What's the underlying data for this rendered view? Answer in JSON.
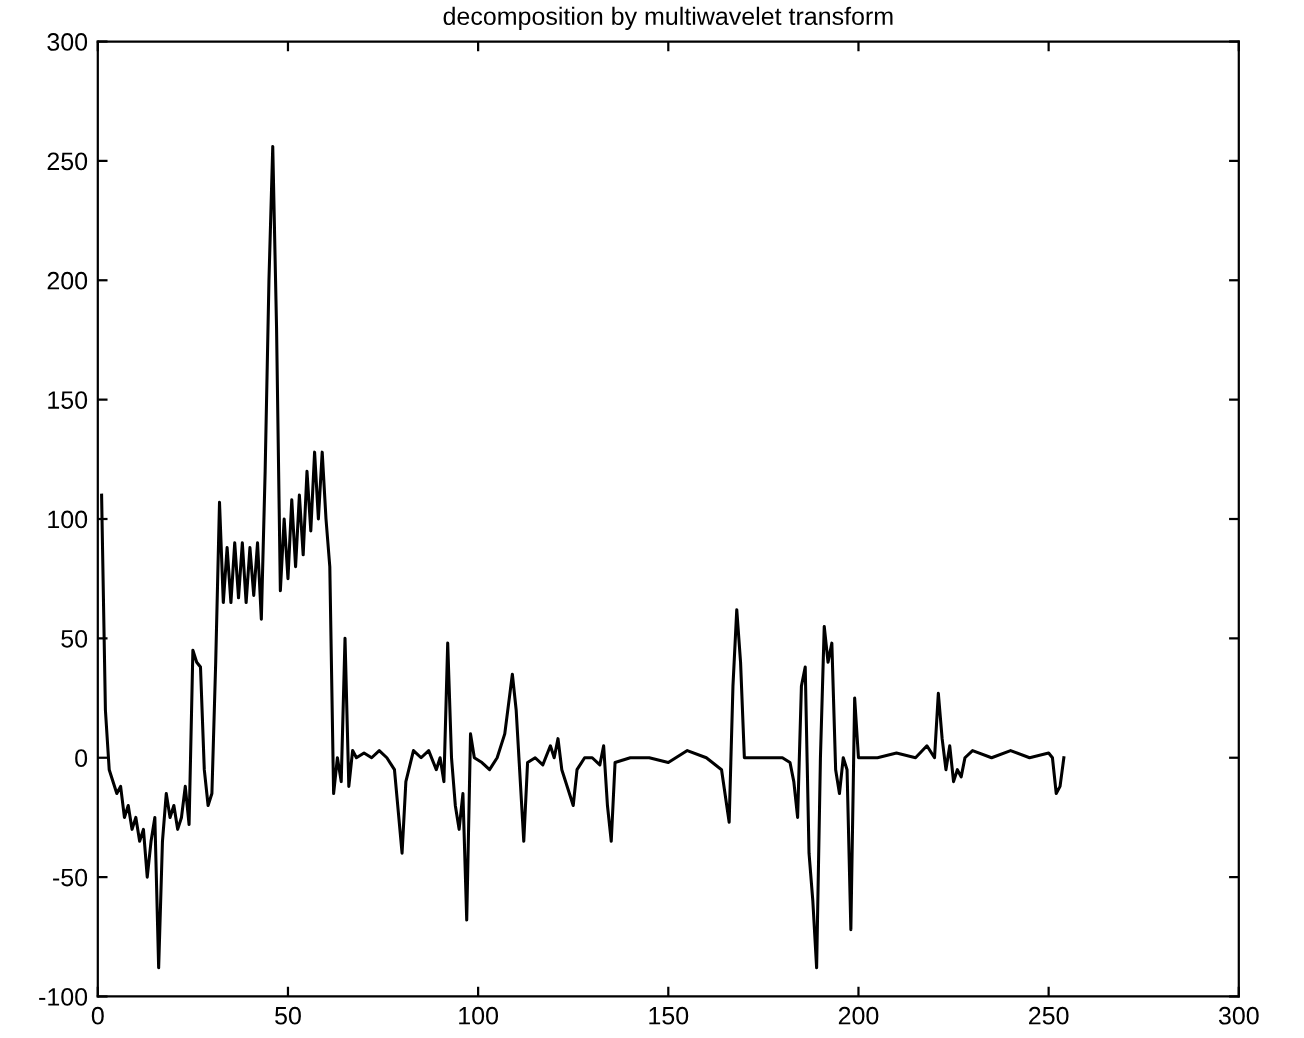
{
  "chart_data": {
    "type": "line",
    "title": "decomposition by multiwavelet transform",
    "color": "#000000",
    "x": [
      1,
      2,
      3,
      5,
      6,
      7,
      8,
      9,
      10,
      11,
      12,
      13,
      14,
      15,
      16,
      17,
      18,
      19,
      20,
      21,
      22,
      23,
      24,
      25,
      26,
      27,
      28,
      29,
      30,
      31,
      32,
      33,
      34,
      35,
      36,
      37,
      38,
      39,
      40,
      41,
      42,
      43,
      44,
      45,
      46,
      47,
      48,
      49,
      50,
      51,
      52,
      53,
      54,
      55,
      56,
      57,
      58,
      59,
      60,
      61,
      62,
      63,
      64,
      65,
      66,
      67,
      68,
      70,
      72,
      74,
      76,
      78,
      80,
      81,
      83,
      85,
      87,
      89,
      90,
      91,
      92,
      93,
      94,
      95,
      96,
      97,
      98,
      99,
      101,
      103,
      105,
      107,
      109,
      110,
      112,
      113,
      115,
      117,
      119,
      120,
      121,
      122,
      124,
      125,
      126,
      128,
      130,
      132,
      133,
      134,
      135,
      136,
      140,
      145,
      150,
      155,
      160,
      164,
      166,
      167,
      168,
      169,
      170,
      175,
      180,
      182,
      183,
      184,
      185,
      186,
      187,
      188,
      189,
      190,
      191,
      192,
      193,
      194,
      195,
      196,
      197,
      198,
      199,
      200,
      205,
      210,
      215,
      218,
      220,
      221,
      222,
      223,
      224,
      225,
      226,
      227,
      228,
      230,
      235,
      240,
      245,
      250,
      251,
      252,
      253,
      254
    ],
    "values": [
      110,
      20,
      -5,
      -15,
      -12,
      -25,
      -20,
      -30,
      -25,
      -35,
      -30,
      -50,
      -35,
      -25,
      -88,
      -35,
      -15,
      -25,
      -20,
      -30,
      -25,
      -12,
      -28,
      45,
      40,
      38,
      -5,
      -20,
      -15,
      40,
      107,
      65,
      88,
      65,
      90,
      67,
      90,
      65,
      88,
      68,
      90,
      58,
      120,
      200,
      256,
      180,
      70,
      100,
      75,
      108,
      80,
      110,
      85,
      120,
      95,
      128,
      100,
      128,
      100,
      80,
      -15,
      0,
      -10,
      50,
      -12,
      3,
      0,
      2,
      0,
      3,
      0,
      -5,
      -40,
      -10,
      3,
      0,
      3,
      -5,
      0,
      -10,
      48,
      0,
      -20,
      -30,
      -15,
      -68,
      10,
      0,
      -2,
      -5,
      0,
      10,
      35,
      20,
      -35,
      -2,
      0,
      -3,
      5,
      0,
      8,
      -5,
      -15,
      -20,
      -5,
      0,
      0,
      -3,
      5,
      -20,
      -35,
      -2,
      0,
      0,
      -2,
      3,
      0,
      -5,
      -27,
      30,
      62,
      40,
      0,
      0,
      0,
      -2,
      -10,
      -25,
      30,
      38,
      -40,
      -60,
      -88,
      0,
      55,
      40,
      48,
      -5,
      -15,
      0,
      -5,
      -72,
      25,
      0,
      0,
      2,
      0,
      5,
      0,
      27,
      8,
      -5,
      5,
      -10,
      -5,
      -8,
      0,
      3,
      0,
      3,
      0,
      2,
      0,
      -15,
      -12,
      0
    ],
    "xlim": [
      0,
      300
    ],
    "xticks": [
      0,
      50,
      100,
      150,
      200,
      250,
      300
    ],
    "ylim": [
      -100,
      300
    ],
    "yticks": [
      -100,
      -50,
      0,
      50,
      100,
      150,
      200,
      250,
      300
    ],
    "grid": false,
    "legend": false
  }
}
